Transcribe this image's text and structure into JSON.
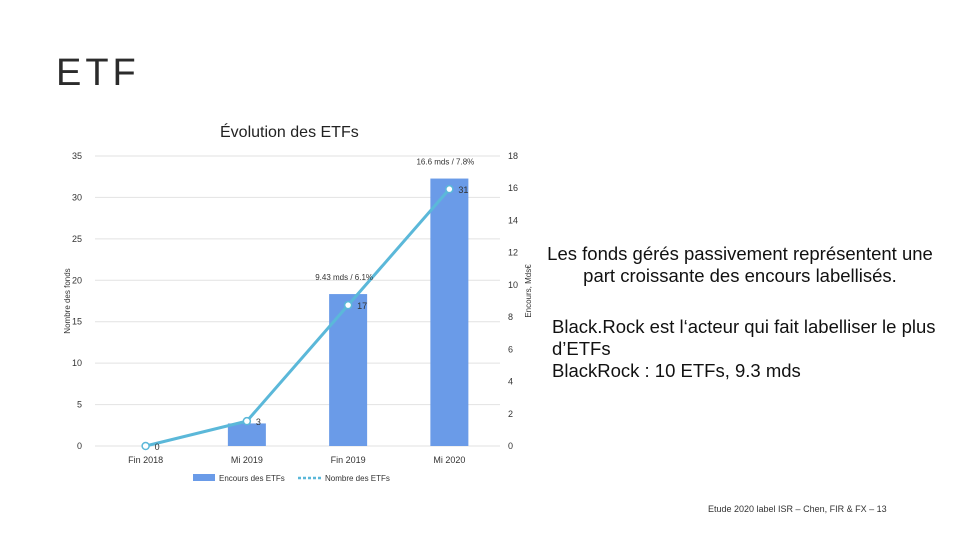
{
  "slide": {
    "title": "ETF",
    "footer": "Etude 2020 label ISR – Chen, FIR & FX – 13"
  },
  "text": {
    "paragraph1": "Les fonds gérés passivement représentent une part croissante des encours labellisés.",
    "paragraph2_line1": "Black.Rock est l‘acteur qui fait labelliser le plus d’ETFs",
    "paragraph2_line2": "BlackRock : 10 ETFs, 9.3 mds"
  },
  "colors": {
    "bar": "#6a9be8",
    "line": "#5bb8d9",
    "grid": "#e2e2e2"
  },
  "chart_data": {
    "type": "bar",
    "title": "Évolution des ETFs",
    "categories": [
      "Fin 2018",
      "Mi 2019",
      "Fin 2019",
      "Mi 2020"
    ],
    "ylabel_left": "Nombre des fonds",
    "ylabel_right": "Encours, Mds€",
    "ylim_left": [
      0,
      35
    ],
    "ylim_right": [
      0,
      18
    ],
    "yticks_left": [
      0,
      5,
      10,
      15,
      20,
      25,
      30,
      35
    ],
    "yticks_right": [
      0,
      2,
      4,
      6,
      8,
      10,
      12,
      14,
      16,
      18
    ],
    "series": [
      {
        "name": "Encours des ETFs",
        "kind": "bar",
        "axis": "right",
        "values": [
          0,
          1.4,
          9.43,
          16.6
        ]
      },
      {
        "name": "Nombre des ETFs",
        "kind": "line",
        "axis": "left",
        "values": [
          0,
          3,
          17,
          31
        ]
      }
    ],
    "point_labels": [
      "0",
      "3",
      "17",
      "31"
    ],
    "annotations": [
      "9.43 mds / 6.1%",
      "16.6 mds / 7.8%"
    ],
    "legend_position": "bottom",
    "grid": true
  }
}
